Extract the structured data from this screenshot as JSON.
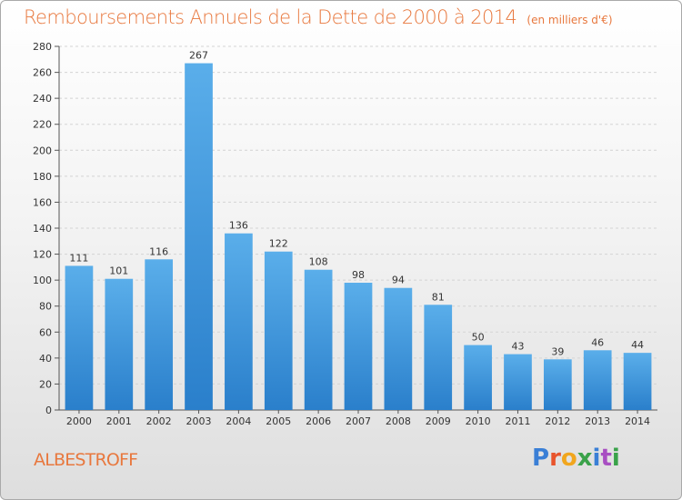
{
  "header": {
    "title": "Remboursements Annuels de la Dette de 2000 à 2014",
    "unit": "(en milliers d'€)"
  },
  "footer": {
    "commune": "ALBESTROFF",
    "logo_text": "Proxiti",
    "logo_colors": [
      "#3a7fd6",
      "#e8542c",
      "#f1a61e",
      "#3aa24a",
      "#3a7fd6",
      "#a84fc2",
      "#3aa24a"
    ]
  },
  "chart_data": {
    "type": "bar",
    "categories": [
      "2000",
      "2001",
      "2002",
      "2003",
      "2004",
      "2005",
      "2006",
      "2007",
      "2008",
      "2009",
      "2010",
      "2011",
      "2012",
      "2013",
      "2014"
    ],
    "values": [
      111,
      101,
      116,
      267,
      136,
      122,
      108,
      98,
      94,
      81,
      50,
      43,
      39,
      46,
      44
    ],
    "title": "Remboursements Annuels de la Dette de 2000 à 2014",
    "xlabel": "",
    "ylabel": "",
    "ylim": [
      0,
      280
    ],
    "yticks": [
      0,
      20,
      40,
      60,
      80,
      100,
      120,
      140,
      160,
      180,
      200,
      220,
      240,
      260,
      280
    ],
    "grid": true,
    "legend": "none",
    "bar_color_top": "#5aaeea",
    "bar_color_bottom": "#2a7fcb"
  }
}
